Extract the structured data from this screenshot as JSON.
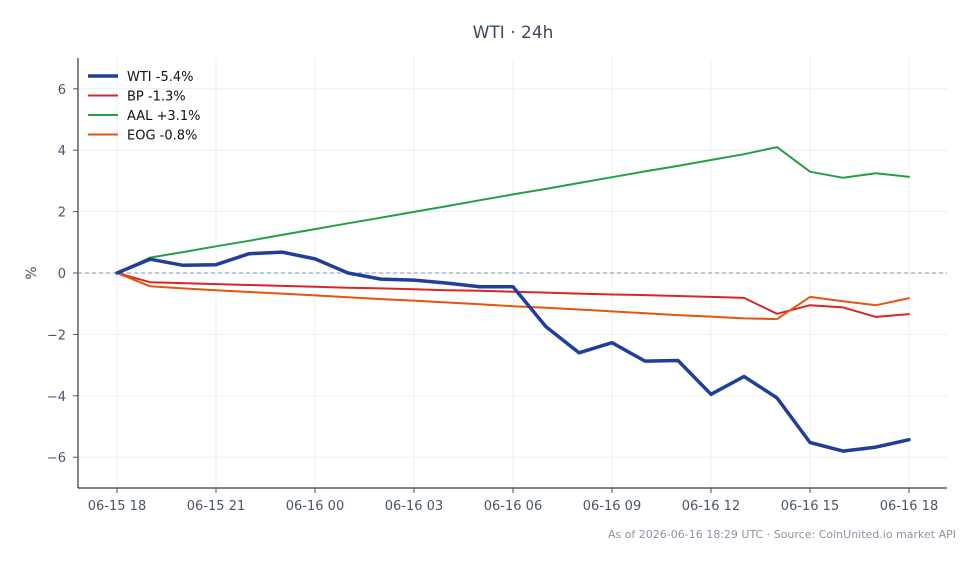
{
  "chart_data": {
    "type": "line",
    "title": "WTI · 24h",
    "xlabel": "",
    "ylabel": "%",
    "footer": "As of 2026-06-16 18:29 UTC · Source: CoinUnited.io market API",
    "x": [
      "06-15 18",
      "06-15 19",
      "06-15 20",
      "06-15 21",
      "06-15 22",
      "06-15 23",
      "06-16 00",
      "06-16 01",
      "06-16 02",
      "06-16 03",
      "06-16 04",
      "06-16 05",
      "06-16 06",
      "06-16 07",
      "06-16 08",
      "06-16 09",
      "06-16 10",
      "06-16 11",
      "06-16 12",
      "06-16 13",
      "06-16 14",
      "06-16 15",
      "06-16 16",
      "06-16 17",
      "06-16 18"
    ],
    "xticks": [
      "06-15 18",
      "06-15 21",
      "06-16 00",
      "06-16 03",
      "06-16 06",
      "06-16 09",
      "06-16 12",
      "06-16 15",
      "06-16 18"
    ],
    "yticks": [
      "6",
      "4",
      "2",
      "0",
      "−2",
      "−4",
      "−6"
    ],
    "ylim": [
      -7,
      7
    ],
    "grid": true,
    "legend_position": "top-left",
    "reference_line": 0,
    "series": [
      {
        "name": "WTI -5.4%",
        "color": "#1f3f99",
        "emphasis": true,
        "values": [
          0,
          0.45,
          0.25,
          0.27,
          0.63,
          0.68,
          0.46,
          0.0,
          -0.2,
          -0.23,
          -0.33,
          -0.45,
          -0.45,
          -1.75,
          -2.6,
          -2.27,
          -2.87,
          -2.85,
          -3.95,
          -3.37,
          -4.07,
          -5.52,
          -5.8,
          -5.67,
          -5.43
        ]
      },
      {
        "name": "BP -1.3%",
        "color": "#d62728",
        "emphasis": false,
        "values": [
          0,
          -0.3,
          -0.33,
          -0.36,
          -0.39,
          -0.42,
          -0.45,
          -0.48,
          -0.5,
          -0.53,
          -0.56,
          -0.58,
          -0.61,
          -0.64,
          -0.67,
          -0.7,
          -0.72,
          -0.75,
          -0.78,
          -0.81,
          -1.33,
          -1.05,
          -1.12,
          -1.43,
          -1.34
        ]
      },
      {
        "name": "AAL +3.1%",
        "color": "#22a044",
        "emphasis": false,
        "values": [
          0,
          0.5,
          0.68,
          0.87,
          1.05,
          1.24,
          1.43,
          1.62,
          1.8,
          1.99,
          2.18,
          2.37,
          2.56,
          2.74,
          2.93,
          3.12,
          3.31,
          3.49,
          3.68,
          3.87,
          4.1,
          3.3,
          3.1,
          3.25,
          3.13
        ]
      },
      {
        "name": "EOG -0.8%",
        "color": "#e6550d",
        "emphasis": false,
        "values": [
          0,
          -0.43,
          -0.5,
          -0.56,
          -0.62,
          -0.67,
          -0.73,
          -0.79,
          -0.85,
          -0.9,
          -0.96,
          -1.02,
          -1.08,
          -1.13,
          -1.19,
          -1.25,
          -1.31,
          -1.37,
          -1.42,
          -1.48,
          -1.5,
          -0.78,
          -0.92,
          -1.05,
          -0.82
        ]
      }
    ]
  }
}
